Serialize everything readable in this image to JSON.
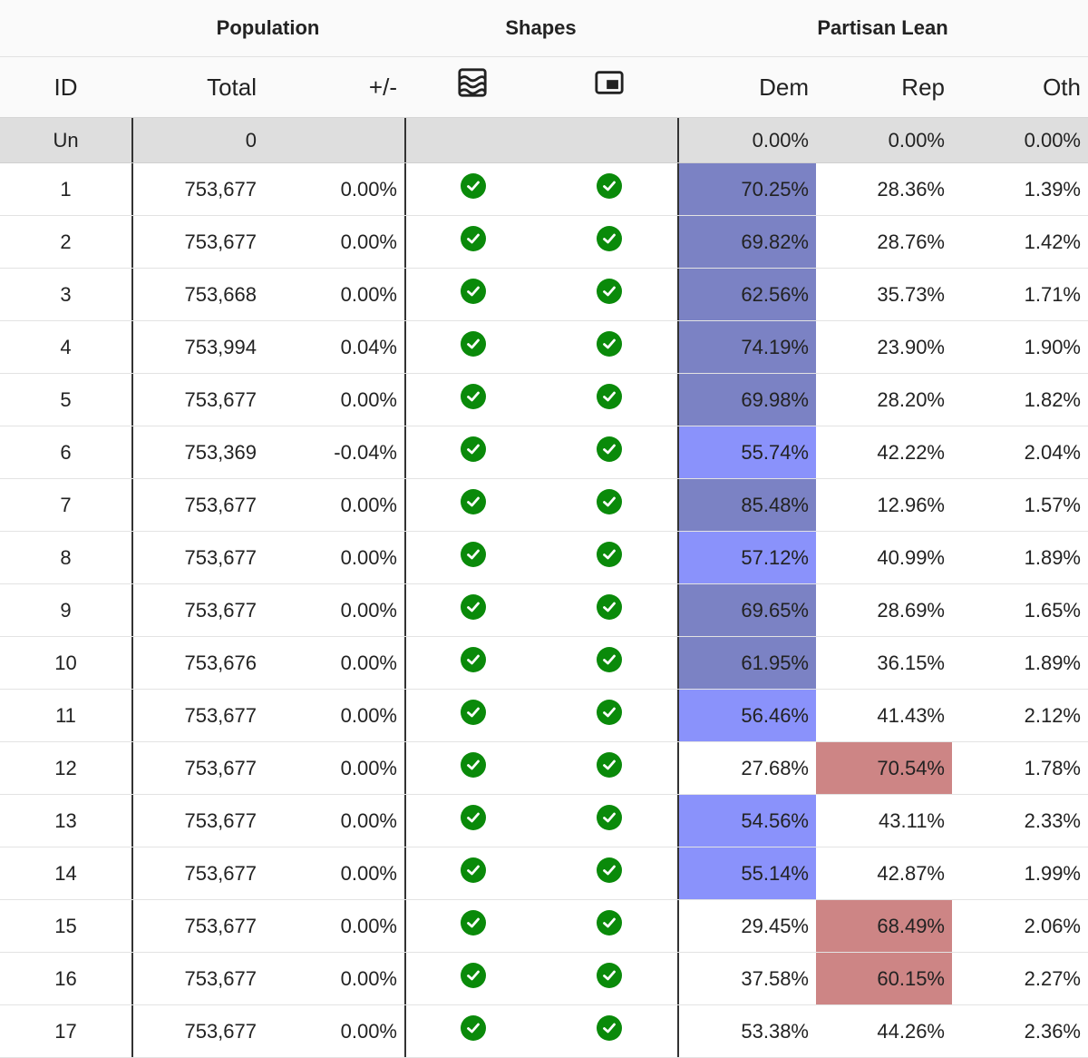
{
  "groups": {
    "population": "Population",
    "shapes": "Shapes",
    "partisan": "Partisan Lean"
  },
  "columns": {
    "id": "ID",
    "total": "Total",
    "deviation": "+/-",
    "dem": "Dem",
    "rep": "Rep",
    "oth": "Oth"
  },
  "icons": {
    "shape_a": "compactness-icon",
    "shape_b": "contiguity-icon",
    "check": "check-circle-icon"
  },
  "colors": {
    "dem_strong": "#7b82c4",
    "dem_lean": "#8a92fb",
    "rep_strong": "#cd8585",
    "check": "#0a8a0a"
  },
  "unassigned": {
    "id": "Un",
    "total": "0",
    "dem": "0.00%",
    "rep": "0.00%",
    "oth": "0.00%"
  },
  "rows": [
    {
      "id": "1",
      "total": "753,677",
      "dev": "0.00%",
      "dem": "70.25%",
      "rep": "28.36%",
      "oth": "1.39%",
      "lean": "dem-strong"
    },
    {
      "id": "2",
      "total": "753,677",
      "dev": "0.00%",
      "dem": "69.82%",
      "rep": "28.76%",
      "oth": "1.42%",
      "lean": "dem-strong"
    },
    {
      "id": "3",
      "total": "753,668",
      "dev": "0.00%",
      "dem": "62.56%",
      "rep": "35.73%",
      "oth": "1.71%",
      "lean": "dem-strong"
    },
    {
      "id": "4",
      "total": "753,994",
      "dev": "0.04%",
      "dem": "74.19%",
      "rep": "23.90%",
      "oth": "1.90%",
      "lean": "dem-strong"
    },
    {
      "id": "5",
      "total": "753,677",
      "dev": "0.00%",
      "dem": "69.98%",
      "rep": "28.20%",
      "oth": "1.82%",
      "lean": "dem-strong"
    },
    {
      "id": "6",
      "total": "753,369",
      "dev": "-0.04%",
      "dem": "55.74%",
      "rep": "42.22%",
      "oth": "2.04%",
      "lean": "dem-mid"
    },
    {
      "id": "7",
      "total": "753,677",
      "dev": "0.00%",
      "dem": "85.48%",
      "rep": "12.96%",
      "oth": "1.57%",
      "lean": "dem-strong"
    },
    {
      "id": "8",
      "total": "753,677",
      "dev": "0.00%",
      "dem": "57.12%",
      "rep": "40.99%",
      "oth": "1.89%",
      "lean": "dem-mid"
    },
    {
      "id": "9",
      "total": "753,677",
      "dev": "0.00%",
      "dem": "69.65%",
      "rep": "28.69%",
      "oth": "1.65%",
      "lean": "dem-strong"
    },
    {
      "id": "10",
      "total": "753,676",
      "dev": "0.00%",
      "dem": "61.95%",
      "rep": "36.15%",
      "oth": "1.89%",
      "lean": "dem-strong"
    },
    {
      "id": "11",
      "total": "753,677",
      "dev": "0.00%",
      "dem": "56.46%",
      "rep": "41.43%",
      "oth": "2.12%",
      "lean": "dem-mid"
    },
    {
      "id": "12",
      "total": "753,677",
      "dev": "0.00%",
      "dem": "27.68%",
      "rep": "70.54%",
      "oth": "1.78%",
      "lean": "rep-strong"
    },
    {
      "id": "13",
      "total": "753,677",
      "dev": "0.00%",
      "dem": "54.56%",
      "rep": "43.11%",
      "oth": "2.33%",
      "lean": "dem-mid"
    },
    {
      "id": "14",
      "total": "753,677",
      "dev": "0.00%",
      "dem": "55.14%",
      "rep": "42.87%",
      "oth": "1.99%",
      "lean": "dem-mid"
    },
    {
      "id": "15",
      "total": "753,677",
      "dev": "0.00%",
      "dem": "29.45%",
      "rep": "68.49%",
      "oth": "2.06%",
      "lean": "rep-strong"
    },
    {
      "id": "16",
      "total": "753,677",
      "dev": "0.00%",
      "dem": "37.58%",
      "rep": "60.15%",
      "oth": "2.27%",
      "lean": "rep-strong"
    },
    {
      "id": "17",
      "total": "753,677",
      "dev": "0.00%",
      "dem": "53.38%",
      "rep": "44.26%",
      "oth": "2.36%",
      "lean": "none"
    }
  ]
}
